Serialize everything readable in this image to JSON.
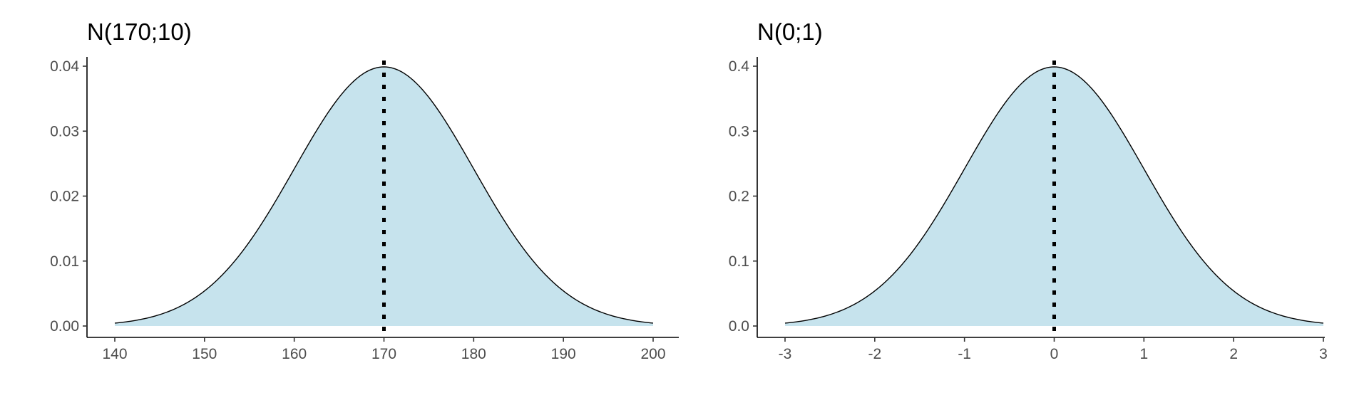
{
  "colors": {
    "fill": "#c6e3ed",
    "line": "#000000",
    "text": "#000000",
    "tick_text": "#4d4d4d"
  },
  "chart_data": [
    {
      "type": "area",
      "title": "N(170;10)",
      "xlabel": "",
      "ylabel": "",
      "distribution": {
        "name": "normal",
        "mean": 170,
        "sd": 10
      },
      "x": [
        140,
        145,
        150,
        155,
        160,
        165,
        170,
        175,
        180,
        185,
        190,
        195,
        200
      ],
      "y": [
        0.00044,
        0.00175,
        0.0054,
        0.01295,
        0.0242,
        0.0352,
        0.03989,
        0.0352,
        0.0242,
        0.01295,
        0.0054,
        0.00175,
        0.00044
      ],
      "xlim": [
        140,
        200
      ],
      "ylim": [
        0,
        0.04
      ],
      "x_ticks": [
        140,
        150,
        160,
        170,
        180,
        190,
        200
      ],
      "x_tick_labels": [
        "140",
        "150",
        "160",
        "170",
        "180",
        "190",
        "200"
      ],
      "y_ticks": [
        0,
        0.01,
        0.02,
        0.03,
        0.04
      ],
      "y_tick_labels": [
        "0.00",
        "0.01",
        "0.02",
        "0.03",
        "0.04"
      ],
      "mean_line": {
        "x": 170,
        "style": "dotted"
      },
      "grid": false
    },
    {
      "type": "area",
      "title": "N(0;1)",
      "xlabel": "",
      "ylabel": "",
      "distribution": {
        "name": "normal",
        "mean": 0,
        "sd": 1
      },
      "x": [
        -3,
        -2.5,
        -2,
        -1.5,
        -1,
        -0.5,
        0,
        0.5,
        1,
        1.5,
        2,
        2.5,
        3
      ],
      "y": [
        0.0044,
        0.0175,
        0.054,
        0.1295,
        0.242,
        0.352,
        0.3989,
        0.352,
        0.242,
        0.1295,
        0.054,
        0.0175,
        0.0044
      ],
      "xlim": [
        -3,
        3
      ],
      "ylim": [
        0,
        0.4
      ],
      "x_ticks": [
        -3,
        -2,
        -1,
        0,
        1,
        2,
        3
      ],
      "x_tick_labels": [
        "-3",
        "-2",
        "-1",
        "0",
        "1",
        "2",
        "3"
      ],
      "y_ticks": [
        0,
        0.1,
        0.2,
        0.3,
        0.4
      ],
      "y_tick_labels": [
        "0.0",
        "0.1",
        "0.2",
        "0.3",
        "0.4"
      ],
      "mean_line": {
        "x": 0,
        "style": "dotted"
      },
      "grid": false
    }
  ]
}
